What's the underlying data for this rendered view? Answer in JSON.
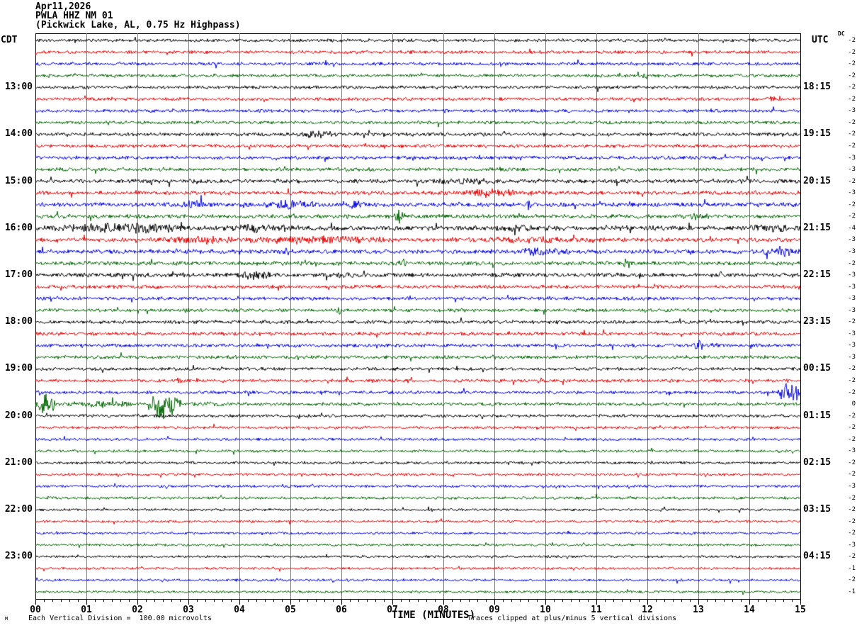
{
  "header": {
    "date_line": "Apr11,2026",
    "station_line": "PWLA HHZ NM 01",
    "filter_line": "(Pickwick Lake, AL, 0.75 Hz Highpass)",
    "left_tz": "CDT",
    "right_tz": "UTC",
    "dc_label": "DC"
  },
  "footer": {
    "x_axis_label": "TIME (MINUTES)",
    "left_note": "Each Vertical Division =  100.00 microvolts",
    "right_note": "Traces clipped at plus/minus 5 vertical divisions",
    "corner_mark": "M"
  },
  "chart_data": {
    "type": "line",
    "title": "PWLA HHZ NM 01 helicorder, Pickwick Lake, AL, 0.75 Hz Highpass, Apr11,2026",
    "xlabel": "TIME (MINUTES)",
    "x_range_minutes": [
      0,
      15
    ],
    "x_tick_labels": [
      "00",
      "01",
      "02",
      "03",
      "04",
      "05",
      "06",
      "07",
      "08",
      "09",
      "10",
      "11",
      "12",
      "13",
      "14",
      "15"
    ],
    "minor_ticks_per_minute": 6,
    "grid_on": true,
    "grid_color": "#808080",
    "trace_colors": {
      "black": "#000000",
      "red": "#e60000",
      "blue": "#0000e0",
      "green": "#006400"
    },
    "color_cycle": [
      "black",
      "red",
      "blue",
      "green"
    ],
    "minutes_per_row": 15,
    "clip_note_divisions": 5,
    "microvolts_per_division": 100.0,
    "rows": [
      {
        "i": 1,
        "color": "black",
        "cdt": "",
        "utc": "",
        "dc": "-2",
        "amp": 1.3
      },
      {
        "i": 2,
        "color": "red",
        "cdt": "",
        "utc": "",
        "dc": "-2",
        "amp": 1.3
      },
      {
        "i": 3,
        "color": "blue",
        "cdt": "",
        "utc": "",
        "dc": "-2",
        "amp": 1.3
      },
      {
        "i": 4,
        "color": "green",
        "cdt": "",
        "utc": "",
        "dc": "-2",
        "amp": 1.3
      },
      {
        "i": 5,
        "color": "black",
        "cdt": "13:00",
        "utc": "18:15",
        "dc": "-2",
        "amp": 1.3
      },
      {
        "i": 6,
        "color": "red",
        "cdt": "",
        "utc": "",
        "dc": "-2",
        "amp": 1.3
      },
      {
        "i": 7,
        "color": "blue",
        "cdt": "",
        "utc": "",
        "dc": "-3",
        "amp": 1.3
      },
      {
        "i": 8,
        "color": "green",
        "cdt": "",
        "utc": "",
        "dc": "-2",
        "amp": 1.3
      },
      {
        "i": 9,
        "color": "black",
        "cdt": "14:00",
        "utc": "19:15",
        "dc": "-2",
        "amp": 1.4
      },
      {
        "i": 10,
        "color": "red",
        "cdt": "",
        "utc": "",
        "dc": "-2",
        "amp": 1.4
      },
      {
        "i": 11,
        "color": "blue",
        "cdt": "",
        "utc": "",
        "dc": "-3",
        "amp": 1.4
      },
      {
        "i": 12,
        "color": "green",
        "cdt": "",
        "utc": "",
        "dc": "-3",
        "amp": 1.4
      },
      {
        "i": 13,
        "color": "black",
        "cdt": "15:00",
        "utc": "20:15",
        "dc": "-2",
        "amp": 1.6
      },
      {
        "i": 14,
        "color": "red",
        "cdt": "",
        "utc": "",
        "dc": "-3",
        "amp": 1.6
      },
      {
        "i": 15,
        "color": "blue",
        "cdt": "",
        "utc": "",
        "dc": "-2",
        "amp": 1.7
      },
      {
        "i": 16,
        "color": "green",
        "cdt": "",
        "utc": "",
        "dc": "-2",
        "amp": 1.6
      },
      {
        "i": 17,
        "color": "black",
        "cdt": "16:00",
        "utc": "21:15",
        "dc": "-4",
        "amp": 1.9
      },
      {
        "i": 18,
        "color": "red",
        "cdt": "",
        "utc": "",
        "dc": "-3",
        "amp": 1.7
      },
      {
        "i": 19,
        "color": "blue",
        "cdt": "",
        "utc": "",
        "dc": "-3",
        "amp": 1.7
      },
      {
        "i": 20,
        "color": "green",
        "cdt": "",
        "utc": "",
        "dc": "-2",
        "amp": 1.6
      },
      {
        "i": 21,
        "color": "black",
        "cdt": "17:00",
        "utc": "22:15",
        "dc": "-3",
        "amp": 1.7
      },
      {
        "i": 22,
        "color": "red",
        "cdt": "",
        "utc": "",
        "dc": "-3",
        "amp": 1.4
      },
      {
        "i": 23,
        "color": "blue",
        "cdt": "",
        "utc": "",
        "dc": "-3",
        "amp": 1.4
      },
      {
        "i": 24,
        "color": "green",
        "cdt": "",
        "utc": "",
        "dc": "-3",
        "amp": 1.4
      },
      {
        "i": 25,
        "color": "black",
        "cdt": "18:00",
        "utc": "23:15",
        "dc": "-2",
        "amp": 1.4
      },
      {
        "i": 26,
        "color": "red",
        "cdt": "",
        "utc": "",
        "dc": "-3",
        "amp": 1.4
      },
      {
        "i": 27,
        "color": "blue",
        "cdt": "",
        "utc": "",
        "dc": "-3",
        "amp": 1.4
      },
      {
        "i": 28,
        "color": "green",
        "cdt": "",
        "utc": "",
        "dc": "-3",
        "amp": 1.4
      },
      {
        "i": 29,
        "color": "black",
        "cdt": "19:00",
        "utc": "00:15",
        "dc": "-2",
        "amp": 1.3
      },
      {
        "i": 30,
        "color": "red",
        "cdt": "",
        "utc": "",
        "dc": "-2",
        "amp": 1.3
      },
      {
        "i": 31,
        "color": "blue",
        "cdt": "",
        "utc": "",
        "dc": "-2",
        "amp": 1.3
      },
      {
        "i": 32,
        "color": "green",
        "cdt": "",
        "utc": "",
        "dc": "0",
        "amp": 1.3
      },
      {
        "i": 33,
        "color": "black",
        "cdt": "20:00",
        "utc": "01:15",
        "dc": "-2",
        "amp": 1.2
      },
      {
        "i": 34,
        "color": "red",
        "cdt": "",
        "utc": "",
        "dc": "-2",
        "amp": 1.1
      },
      {
        "i": 35,
        "color": "blue",
        "cdt": "",
        "utc": "",
        "dc": "-2",
        "amp": 1.1
      },
      {
        "i": 36,
        "color": "green",
        "cdt": "",
        "utc": "",
        "dc": "-3",
        "amp": 1.1
      },
      {
        "i": 37,
        "color": "black",
        "cdt": "21:00",
        "utc": "02:15",
        "dc": "-2",
        "amp": 1.1
      },
      {
        "i": 38,
        "color": "red",
        "cdt": "",
        "utc": "",
        "dc": "-2",
        "amp": 1.1
      },
      {
        "i": 39,
        "color": "blue",
        "cdt": "",
        "utc": "",
        "dc": "-3",
        "amp": 1.1
      },
      {
        "i": 40,
        "color": "green",
        "cdt": "",
        "utc": "",
        "dc": "-2",
        "amp": 1.1
      },
      {
        "i": 41,
        "color": "black",
        "cdt": "22:00",
        "utc": "03:15",
        "dc": "-2",
        "amp": 1.0
      },
      {
        "i": 42,
        "color": "red",
        "cdt": "",
        "utc": "",
        "dc": "-2",
        "amp": 1.0
      },
      {
        "i": 43,
        "color": "blue",
        "cdt": "",
        "utc": "",
        "dc": "-2",
        "amp": 1.0
      },
      {
        "i": 44,
        "color": "green",
        "cdt": "",
        "utc": "",
        "dc": "-3",
        "amp": 1.0
      },
      {
        "i": 45,
        "color": "black",
        "cdt": "23:00",
        "utc": "04:15",
        "dc": "-2",
        "amp": 1.0
      },
      {
        "i": 46,
        "color": "red",
        "cdt": "",
        "utc": "",
        "dc": "-1",
        "amp": 1.0
      },
      {
        "i": 47,
        "color": "blue",
        "cdt": "",
        "utc": "",
        "dc": "-2",
        "amp": 1.0
      },
      {
        "i": 48,
        "color": "green",
        "cdt": "",
        "utc": "",
        "dc": "-1",
        "amp": 1.0
      }
    ],
    "events": [
      {
        "row": 4,
        "start": 7.55,
        "end": 7.68,
        "amp": 2.5
      },
      {
        "row": 4,
        "start": 11.9,
        "end": 12.02,
        "amp": 2.5
      },
      {
        "row": 6,
        "start": 14.2,
        "end": 14.8,
        "amp": 1.8
      },
      {
        "row": 9,
        "start": 5.05,
        "end": 5.95,
        "amp": 2.4
      },
      {
        "row": 10,
        "start": 6.5,
        "end": 7.2,
        "amp": 1.6
      },
      {
        "row": 13,
        "start": 7.6,
        "end": 9.4,
        "amp": 1.8
      },
      {
        "row": 14,
        "start": 8.3,
        "end": 9.6,
        "amp": 2.6
      },
      {
        "row": 15,
        "start": 2.8,
        "end": 3.4,
        "amp": 2.2
      },
      {
        "row": 15,
        "start": 4.3,
        "end": 5.6,
        "amp": 2.4
      },
      {
        "row": 15,
        "start": 5.9,
        "end": 6.6,
        "amp": 2.2
      },
      {
        "row": 15,
        "start": 9.6,
        "end": 9.75,
        "amp": 3.0
      },
      {
        "row": 16,
        "start": 7.0,
        "end": 7.25,
        "amp": 4.0
      },
      {
        "row": 16,
        "start": 12.4,
        "end": 13.4,
        "amp": 1.8
      },
      {
        "row": 17,
        "start": 0.0,
        "end": 3.3,
        "amp": 2.3
      },
      {
        "row": 17,
        "start": 3.3,
        "end": 5.5,
        "amp": 1.8
      },
      {
        "row": 17,
        "start": 9.0,
        "end": 10.0,
        "amp": 1.6
      },
      {
        "row": 17,
        "start": 13.8,
        "end": 15.0,
        "amp": 1.8
      },
      {
        "row": 18,
        "start": 2.0,
        "end": 4.4,
        "amp": 2.2
      },
      {
        "row": 18,
        "start": 3.4,
        "end": 7.5,
        "amp": 2.0
      },
      {
        "row": 18,
        "start": 7.5,
        "end": 11.5,
        "amp": 1.7
      },
      {
        "row": 19,
        "start": 4.8,
        "end": 5.0,
        "amp": 2.5
      },
      {
        "row": 19,
        "start": 9.3,
        "end": 10.6,
        "amp": 2.2
      },
      {
        "row": 19,
        "start": 14.2,
        "end": 15.0,
        "amp": 3.0
      },
      {
        "row": 20,
        "start": 7.1,
        "end": 7.3,
        "amp": 3.0
      },
      {
        "row": 20,
        "start": 11.5,
        "end": 11.72,
        "amp": 3.5
      },
      {
        "row": 21,
        "start": 3.8,
        "end": 4.7,
        "amp": 2.2
      },
      {
        "row": 21,
        "start": 5.7,
        "end": 6.6,
        "amp": 1.6
      },
      {
        "row": 23,
        "start": 0.25,
        "end": 0.42,
        "amp": 2.5
      },
      {
        "row": 24,
        "start": 5.88,
        "end": 6.0,
        "amp": 3.0
      },
      {
        "row": 27,
        "start": 12.9,
        "end": 13.1,
        "amp": 3.5
      },
      {
        "row": 27,
        "start": 13.25,
        "end": 13.42,
        "amp": 2.2
      },
      {
        "row": 29,
        "start": 14.8,
        "end": 15.0,
        "amp": 2.0
      },
      {
        "row": 30,
        "start": 2.72,
        "end": 2.9,
        "amp": 2.0
      },
      {
        "row": 31,
        "start": 0.0,
        "end": 0.14,
        "amp": 2.5
      },
      {
        "row": 31,
        "start": 14.55,
        "end": 15.0,
        "amp": 6.0
      },
      {
        "row": 32,
        "start": 0.0,
        "end": 0.38,
        "amp": 7.0
      },
      {
        "row": 32,
        "start": 0.38,
        "end": 2.2,
        "amp": 2.2
      },
      {
        "row": 32,
        "start": 2.2,
        "end": 2.85,
        "amp": 9.5
      },
      {
        "row": 32,
        "start": 2.85,
        "end": 4.0,
        "amp": 1.8
      },
      {
        "row": 33,
        "start": 2.3,
        "end": 2.7,
        "amp": 1.6
      }
    ]
  }
}
